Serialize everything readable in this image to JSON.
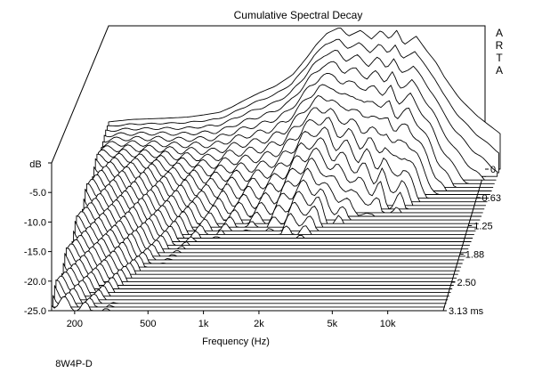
{
  "chart_data": {
    "type": "waterfall",
    "title": "Cumulative Spectral Decay",
    "watermark": "ARTA",
    "xlabel": "Frequency (Hz)",
    "ylabel": "dB",
    "zlabel_unit": "ms",
    "xscale": "log",
    "xlim": [
      150,
      20000
    ],
    "ylim": [
      -25,
      0
    ],
    "zlim": [
      0,
      3.13
    ],
    "x_ticks": [
      {
        "value": 200,
        "label": "200"
      },
      {
        "value": 500,
        "label": "500"
      },
      {
        "value": 1000,
        "label": "1k"
      },
      {
        "value": 2000,
        "label": "2k"
      },
      {
        "value": 5000,
        "label": "5k"
      },
      {
        "value": 10000,
        "label": "10k"
      }
    ],
    "y_ticks": [
      {
        "value": 0,
        "label": ""
      },
      {
        "value": -5,
        "label": "-5.0"
      },
      {
        "value": -10,
        "label": "-10.0"
      },
      {
        "value": -15,
        "label": "-15.0"
      },
      {
        "value": -20,
        "label": "-20.0"
      },
      {
        "value": -25,
        "label": "-25.0"
      }
    ],
    "z_ticks": [
      {
        "value": 0,
        "label": "0"
      },
      {
        "value": 0.63,
        "label": "0.63"
      },
      {
        "value": 1.25,
        "label": "1.25"
      },
      {
        "value": 1.88,
        "label": "1.88"
      },
      {
        "value": 2.5,
        "label": "2.50"
      },
      {
        "value": 3.13,
        "label": "3.13 ms"
      }
    ],
    "slice_count": 40,
    "response_t0": [
      [
        150,
        -17
      ],
      [
        200,
        -16.6
      ],
      [
        300,
        -16.4
      ],
      [
        400,
        -16.2
      ],
      [
        500,
        -15.8
      ],
      [
        600,
        -15.4
      ],
      [
        700,
        -14.5
      ],
      [
        800,
        -13.5
      ],
      [
        1000,
        -12
      ],
      [
        1200,
        -11
      ],
      [
        1500,
        -9
      ],
      [
        1800,
        -6
      ],
      [
        2000,
        -4
      ],
      [
        2300,
        -2
      ],
      [
        2700,
        -1
      ],
      [
        3000,
        -2.5
      ],
      [
        3500,
        -1.5
      ],
      [
        4000,
        -3
      ],
      [
        4500,
        -1.5
      ],
      [
        5000,
        -3
      ],
      [
        5500,
        -1.5
      ],
      [
        6000,
        -4
      ],
      [
        7000,
        -2.5
      ],
      [
        8000,
        -5
      ],
      [
        9000,
        -7
      ],
      [
        10000,
        -9.5
      ],
      [
        12000,
        -13
      ],
      [
        15000,
        -16
      ],
      [
        20000,
        -19
      ]
    ],
    "decay_rate": [
      [
        150,
        2
      ],
      [
        300,
        3
      ],
      [
        500,
        5
      ],
      [
        800,
        8
      ],
      [
        1000,
        10
      ],
      [
        2000,
        14
      ],
      [
        3000,
        18
      ],
      [
        5000,
        22
      ],
      [
        8000,
        24
      ],
      [
        10000,
        27
      ],
      [
        20000,
        32
      ]
    ],
    "noise_floor": -25
  },
  "footer": {
    "caption": "8W4P-D"
  }
}
